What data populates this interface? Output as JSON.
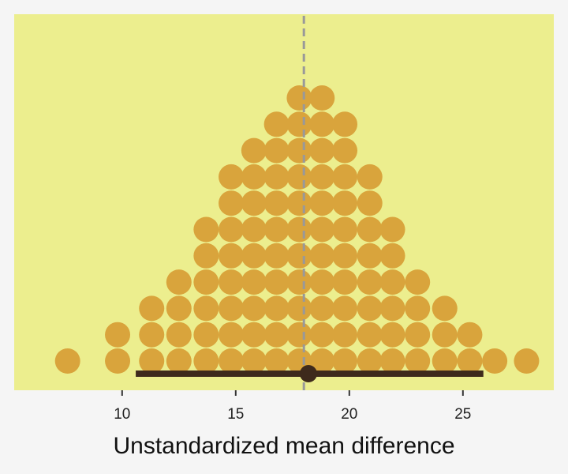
{
  "chart_data": {
    "type": "dotplot",
    "xlabel": "Unstandardized mean difference",
    "xlim": [
      5.25,
      29.0
    ],
    "x_ticks": [
      10,
      15,
      20,
      25
    ],
    "bin_centers": [
      7.6,
      9.8,
      11.3,
      12.5,
      13.7,
      14.8,
      15.8,
      16.8,
      17.8,
      18.8,
      19.8,
      20.9,
      21.9,
      23.0,
      24.2,
      25.3,
      26.4,
      27.8
    ],
    "counts": [
      1,
      2,
      3,
      4,
      6,
      8,
      9,
      10,
      11,
      11,
      10,
      8,
      6,
      4,
      3,
      2,
      1,
      1
    ],
    "reference_line_x": 18.0,
    "interval": {
      "low": 10.6,
      "high": 25.9,
      "point": 18.2
    },
    "colors": {
      "panel": "#ecee8e",
      "dot": "#d9a43c",
      "interval": "#3e2a1c",
      "reference_line": "#999999",
      "axis": "#333333"
    }
  }
}
